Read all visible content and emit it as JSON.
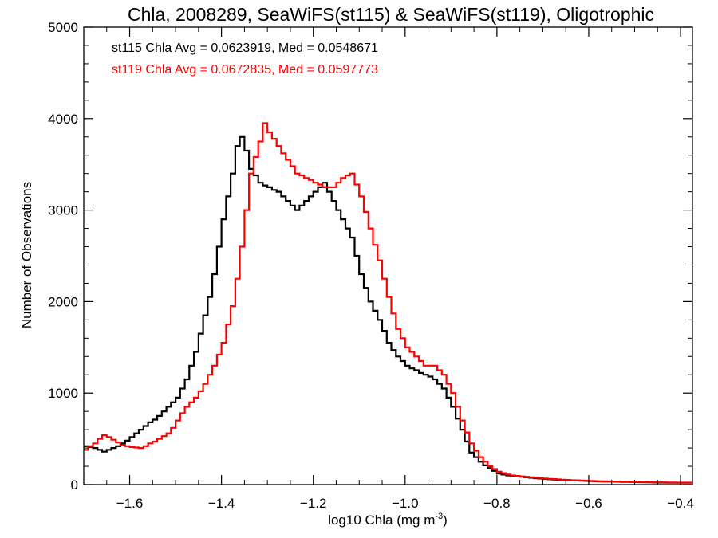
{
  "chart_data": {
    "type": "line",
    "title": "Chla, 2008289, SeaWiFS(st115) & SeaWiFS(st119), Oligotrophic",
    "xlabel": "log10 Chla (mg m",
    "xlabel_superscript": "-3",
    "xlabel_suffix": ")",
    "ylabel": "Number of Observations",
    "xlim": [
      -1.7,
      -0.374
    ],
    "ylim": [
      0,
      5000
    ],
    "x_ticks": [
      -1.6,
      -1.4,
      -1.2,
      -1.0,
      -0.8,
      -0.6,
      -0.4
    ],
    "x_tick_labels": [
      "−1.6",
      "−1.4",
      "−1.2",
      "−1.0",
      "−0.8",
      "−0.6",
      "−0.4"
    ],
    "x_minor_step": 0.05,
    "y_ticks": [
      0,
      1000,
      2000,
      3000,
      4000,
      5000
    ],
    "y_tick_labels": [
      "0",
      "1000",
      "2000",
      "3000",
      "4000",
      "5000"
    ],
    "y_minor_step": 200,
    "grid": false,
    "legend": [
      {
        "text": "st115 Chla Avg = 0.0623919, Med = 0.0548671",
        "color": "#000000"
      },
      {
        "text": "st119 Chla Avg = 0.0672835, Med = 0.0597773",
        "color": "#ff0000"
      }
    ],
    "legend_position": "top-left",
    "bin_width": 0.01,
    "x_start": -1.7,
    "series": [
      {
        "name": "st115",
        "color": "#000000",
        "style": "histogram-step",
        "values": [
          420,
          410,
          400,
          380,
          360,
          380,
          400,
          420,
          450,
          480,
          520,
          560,
          600,
          640,
          680,
          710,
          750,
          800,
          850,
          900,
          950,
          1050,
          1150,
          1300,
          1450,
          1650,
          1850,
          2050,
          2300,
          2600,
          2900,
          3150,
          3400,
          3700,
          3800,
          3650,
          3450,
          3380,
          3300,
          3270,
          3250,
          3220,
          3200,
          3150,
          3100,
          3050,
          3000,
          3050,
          3100,
          3150,
          3200,
          3250,
          3300,
          3200,
          3100,
          3000,
          2900,
          2800,
          2700,
          2500,
          2300,
          2150,
          2000,
          1900,
          1800,
          1680,
          1550,
          1470,
          1400,
          1350,
          1300,
          1270,
          1250,
          1220,
          1200,
          1180,
          1150,
          1100,
          1050,
          950,
          850,
          720,
          600,
          470,
          350,
          300,
          250,
          210,
          180,
          150,
          120,
          110,
          100,
          95,
          90,
          85,
          80,
          75,
          70,
          66,
          62,
          58,
          55,
          52,
          50,
          48,
          46,
          44,
          42,
          40,
          38,
          36,
          35,
          34,
          33,
          32,
          31,
          30,
          29,
          28,
          27,
          26,
          25,
          24,
          23,
          22,
          22,
          21,
          21,
          20,
          20,
          20,
          20
        ]
      },
      {
        "name": "st119",
        "color": "#ff0000",
        "style": "histogram-step",
        "values": [
          380,
          420,
          450,
          500,
          540,
          520,
          490,
          460,
          430,
          420,
          410,
          405,
          400,
          420,
          450,
          470,
          500,
          530,
          560,
          620,
          700,
          780,
          850,
          900,
          950,
          1020,
          1100,
          1200,
          1300,
          1420,
          1550,
          1750,
          1950,
          2250,
          2600,
          3000,
          3400,
          3580,
          3750,
          3950,
          3850,
          3780,
          3700,
          3620,
          3550,
          3480,
          3400,
          3380,
          3350,
          3330,
          3300,
          3280,
          3250,
          3250,
          3250,
          3300,
          3350,
          3380,
          3400,
          3280,
          3150,
          2980,
          2800,
          2620,
          2450,
          2250,
          2050,
          1870,
          1700,
          1600,
          1500,
          1450,
          1400,
          1350,
          1300,
          1300,
          1300,
          1250,
          1200,
          1100,
          1000,
          850,
          700,
          570,
          450,
          370,
          300,
          250,
          200,
          170,
          140,
          125,
          110,
          100,
          95,
          90,
          85,
          80,
          75,
          71,
          67,
          63,
          60,
          57,
          54,
          51,
          48,
          46,
          44,
          42,
          40,
          38,
          37,
          36,
          35,
          34,
          33,
          32,
          31,
          30,
          29,
          28,
          27,
          26,
          25,
          24,
          24,
          23,
          23,
          22,
          22,
          22,
          22
        ]
      }
    ]
  }
}
